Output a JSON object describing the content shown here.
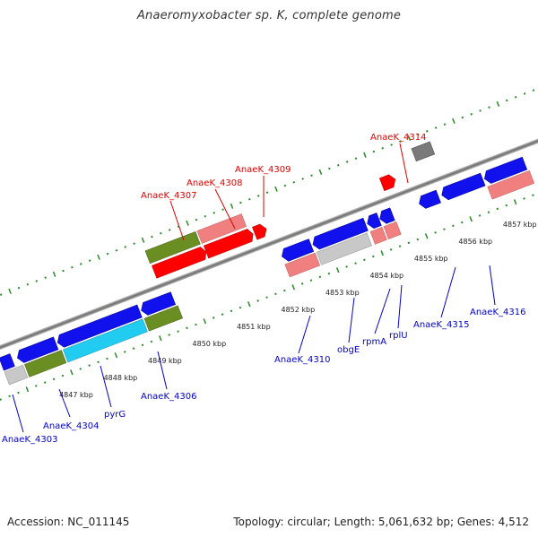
{
  "header": {
    "title": "Anaeromyxobacter sp. K, complete genome"
  },
  "footer": {
    "accession": "Accession: NC_011145",
    "topology": "Topology: circular; Length: 5,061,632 bp; Genes: 4,512"
  },
  "kbp_ticks": [
    "4847 kbp",
    "4848 kbp",
    "4849 kbp",
    "4850 kbp",
    "4851 kbp",
    "4852 kbp",
    "4853 kbp",
    "4854 kbp",
    "4855 kbp",
    "4856 kbp",
    "4857 kbp"
  ],
  "forward_labels": [
    "AnaeK_4307",
    "AnaeK_4308",
    "AnaeK_4309",
    "AnaeK_4314"
  ],
  "reverse_labels": [
    "AnaeK_4303",
    "AnaeK_4304",
    "pyrG",
    "AnaeK_4306",
    "AnaeK_4310",
    "obgE",
    "rpmA",
    "rplU",
    "AnaeK_4315",
    "AnaeK_4316"
  ],
  "colors": {
    "forward_label": "#dd0000",
    "reverse_label": "#0000cc",
    "tick": "#2a8a2a"
  }
}
